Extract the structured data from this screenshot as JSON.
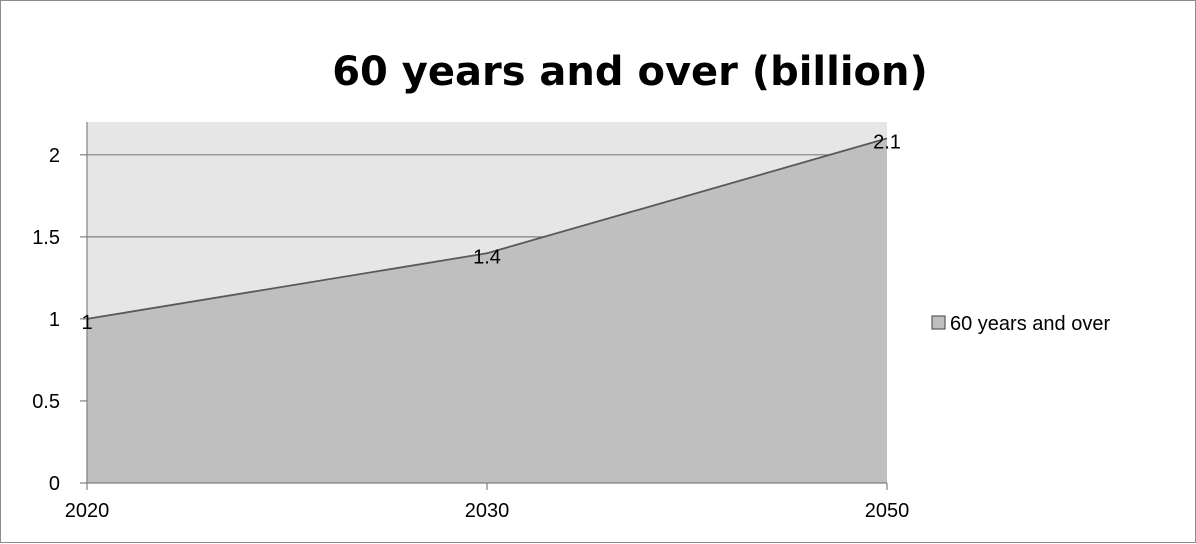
{
  "chart_data": {
    "type": "area",
    "title": "60 years and over (billion)",
    "xlabel": "",
    "ylabel": "",
    "categories": [
      "2020",
      "2030",
      "2050"
    ],
    "series": [
      {
        "name": "60 years and over",
        "values": [
          1,
          1.4,
          2.1
        ],
        "data_labels": [
          "1",
          "1.4",
          "2.1"
        ]
      }
    ],
    "ylim": [
      0,
      2.2
    ],
    "y_ticks": [
      0,
      0.5,
      1,
      1.5,
      2
    ],
    "y_tick_labels": [
      "0",
      "0.5",
      "1",
      "1.5",
      "2"
    ],
    "grid": true,
    "legend_position": "right",
    "colors": {
      "area_fill": "#bfbfbf",
      "area_line": "#595959",
      "plot_background": "#e6e6e6",
      "gridline": "#808080",
      "axis": "#808080",
      "legend_marker_fill": "#bfbfbf",
      "legend_marker_stroke": "#595959"
    }
  }
}
